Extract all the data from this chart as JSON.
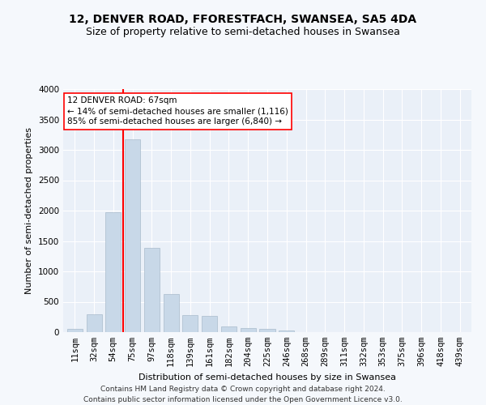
{
  "title": "12, DENVER ROAD, FFORESTFACH, SWANSEA, SA5 4DA",
  "subtitle": "Size of property relative to semi-detached houses in Swansea",
  "xlabel": "Distribution of semi-detached houses by size in Swansea",
  "ylabel": "Number of semi-detached properties",
  "categories": [
    "11sqm",
    "32sqm",
    "54sqm",
    "75sqm",
    "97sqm",
    "118sqm",
    "139sqm",
    "161sqm",
    "182sqm",
    "204sqm",
    "225sqm",
    "246sqm",
    "268sqm",
    "289sqm",
    "311sqm",
    "332sqm",
    "353sqm",
    "375sqm",
    "396sqm",
    "418sqm",
    "439sqm"
  ],
  "values": [
    50,
    300,
    1980,
    3180,
    1390,
    630,
    280,
    270,
    100,
    70,
    50,
    30,
    5,
    2,
    0,
    0,
    0,
    0,
    0,
    0,
    0
  ],
  "bar_color": "#c8d8e8",
  "bar_edge_color": "#aabccc",
  "vline_color": "red",
  "vline_x_pos": 2.5,
  "annotation_text": "12 DENVER ROAD: 67sqm\n← 14% of semi-detached houses are smaller (1,116)\n85% of semi-detached houses are larger (6,840) →",
  "annotation_box_color": "white",
  "annotation_box_edge": "red",
  "ylim": [
    0,
    4000
  ],
  "yticks": [
    0,
    500,
    1000,
    1500,
    2000,
    2500,
    3000,
    3500,
    4000
  ],
  "footnote": "Contains HM Land Registry data © Crown copyright and database right 2024.\nContains public sector information licensed under the Open Government Licence v3.0.",
  "bg_color": "#f5f8fc",
  "plot_bg_color": "#eaf0f8",
  "grid_color": "#ffffff",
  "title_fontsize": 10,
  "subtitle_fontsize": 9,
  "axis_label_fontsize": 8,
  "tick_fontsize": 7.5,
  "annotation_fontsize": 7.5,
  "footnote_fontsize": 6.5
}
